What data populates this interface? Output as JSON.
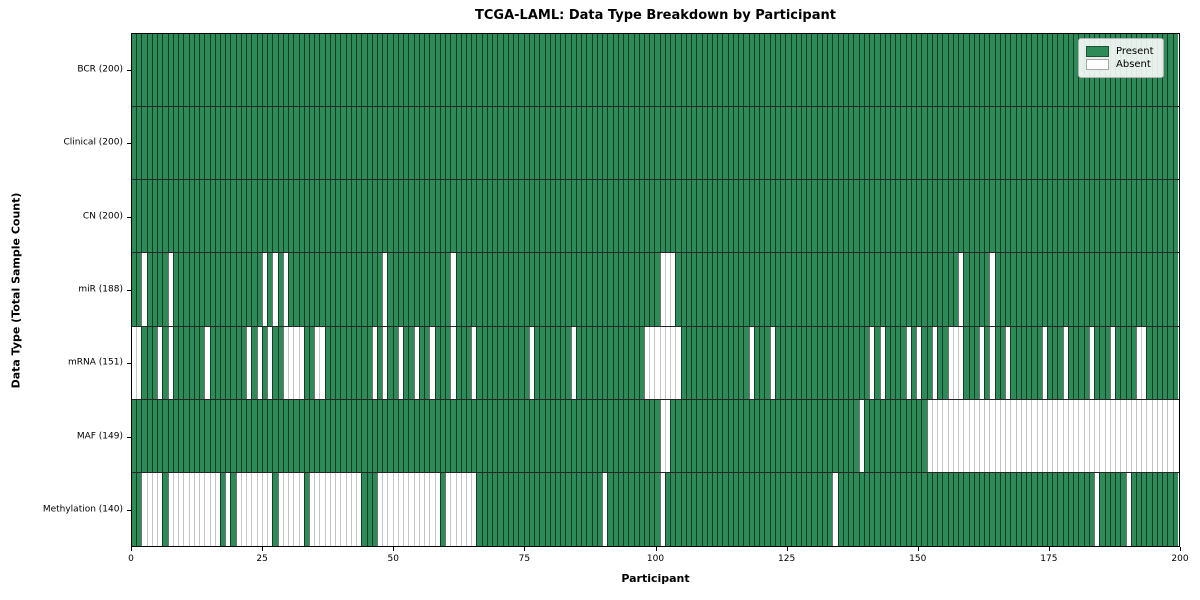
{
  "title": "TCGA-LAML: Data Type Breakdown by Participant",
  "xlabel": "Participant",
  "ylabel": "Data Type (Total Sample Count)",
  "legend": {
    "present_label": "Present",
    "absent_label": "Absent"
  },
  "colors": {
    "present": "#2e8b57",
    "absent": "#ffffff",
    "edge": "#000000"
  },
  "chart_data": {
    "type": "heatmap",
    "title": "TCGA-LAML: Data Type Breakdown by Participant",
    "xlabel": "Participant",
    "ylabel": "Data Type (Total Sample Count)",
    "legend_entries": [
      "Present",
      "Absent"
    ],
    "legend_position": "upper right",
    "n_participants": 200,
    "x_range": [
      0,
      200
    ],
    "x_ticks": [
      0,
      25,
      50,
      75,
      100,
      125,
      150,
      175,
      200
    ],
    "rows": [
      {
        "label": "BCR (200)",
        "data_type": "BCR",
        "present_count": 200,
        "absent_participants": []
      },
      {
        "label": "Clinical (200)",
        "data_type": "Clinical",
        "present_count": 200,
        "absent_participants": []
      },
      {
        "label": "CN (200)",
        "data_type": "CN",
        "present_count": 200,
        "absent_participants": []
      },
      {
        "label": "miR (188)",
        "data_type": "miR",
        "present_count": 188,
        "absent_participants": [
          2,
          7,
          25,
          27,
          29,
          48,
          61,
          101,
          102,
          103,
          158,
          164
        ]
      },
      {
        "label": "mRNA (151)",
        "data_type": "mRNA",
        "present_count": 151,
        "absent_participants": [
          0,
          1,
          5,
          7,
          14,
          22,
          24,
          26,
          29,
          30,
          31,
          32,
          35,
          36,
          46,
          48,
          51,
          54,
          57,
          61,
          65,
          76,
          84,
          98,
          99,
          100,
          101,
          102,
          103,
          104,
          118,
          122,
          141,
          143,
          148,
          150,
          153,
          156,
          157,
          158,
          162,
          164,
          167,
          174,
          178,
          183,
          187,
          192,
          193
        ]
      },
      {
        "label": "MAF (149)",
        "data_type": "MAF",
        "present_count": 149,
        "absent_participants": [
          101,
          102,
          139,
          152,
          153,
          154,
          155,
          156,
          157,
          158,
          159,
          160,
          161,
          162,
          163,
          164,
          165,
          166,
          167,
          168,
          169,
          170,
          171,
          172,
          173,
          174,
          175,
          176,
          177,
          178,
          179,
          180,
          181,
          182,
          183,
          184,
          185,
          186,
          187,
          188,
          189,
          190,
          191,
          192,
          193,
          194,
          195,
          196,
          197,
          198,
          199
        ]
      },
      {
        "label": "Methylation (140)",
        "data_type": "Methylation",
        "present_count": 140,
        "absent_participants": [
          2,
          3,
          4,
          5,
          7,
          8,
          9,
          10,
          11,
          12,
          13,
          14,
          15,
          16,
          18,
          20,
          21,
          22,
          23,
          24,
          25,
          26,
          28,
          29,
          30,
          31,
          32,
          34,
          35,
          36,
          37,
          38,
          39,
          40,
          41,
          42,
          43,
          47,
          48,
          49,
          50,
          51,
          52,
          53,
          54,
          55,
          56,
          57,
          58,
          60,
          61,
          62,
          63,
          64,
          65,
          90,
          101,
          134,
          184,
          190
        ]
      }
    ]
  }
}
